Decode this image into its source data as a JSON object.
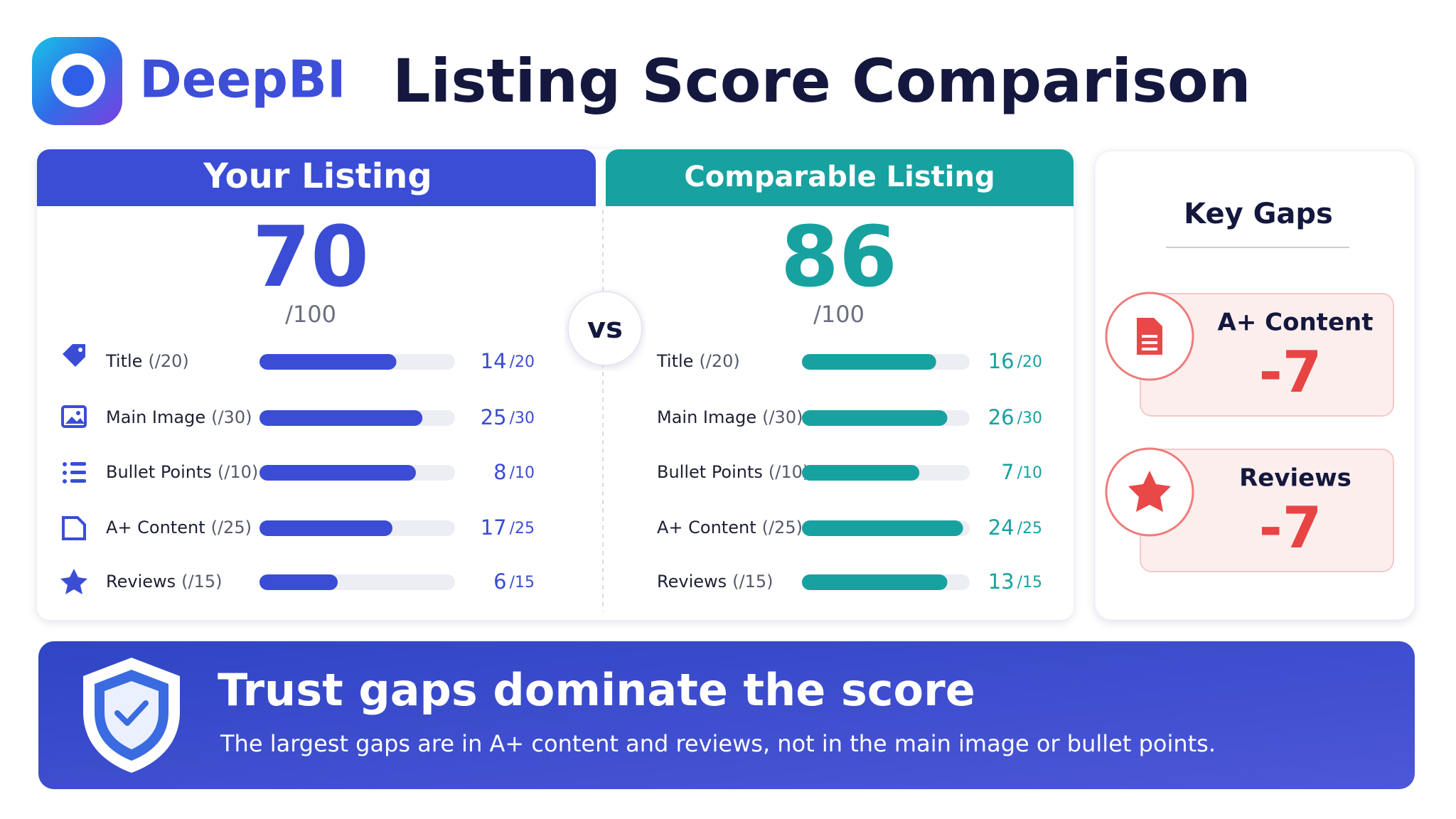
{
  "brand": "DeepBI",
  "title": "Listing Score Comparison",
  "vs": "vs",
  "panels": [
    {
      "heading": "Your Listing",
      "score": 70,
      "score_max": "/100",
      "color": "#3a4dd4",
      "rows": [
        {
          "label": "Title",
          "suffix": "(/20)",
          "value": 14,
          "max": 20,
          "max_label": "/20"
        },
        {
          "label": "Main Image",
          "suffix": "(/30)",
          "value": 25,
          "max": 30,
          "max_label": "/30"
        },
        {
          "label": "Bullet Points",
          "suffix": "(/10)",
          "value": 8,
          "max": 10,
          "max_label": "/10"
        },
        {
          "label": "A+ Content",
          "suffix": "(/25)",
          "value": 17,
          "max": 25,
          "max_label": "/25"
        },
        {
          "label": "Reviews",
          "suffix": "(/15)",
          "value": 6,
          "max": 15,
          "max_label": "/15"
        }
      ]
    },
    {
      "heading": "Comparable Listing",
      "score": 86,
      "score_max": "/100",
      "color": "#17a2a0",
      "rows": [
        {
          "label": "Title",
          "suffix": "(/20)",
          "value": 16,
          "max": 20,
          "max_label": "/20"
        },
        {
          "label": "Main Image",
          "suffix": "(/30)",
          "value": 26,
          "max": 30,
          "max_label": "/30"
        },
        {
          "label": "Bullet Points",
          "suffix": "(/10)",
          "value": 7,
          "max": 10,
          "max_label": "/10"
        },
        {
          "label": "A+ Content",
          "suffix": "(/25)",
          "value": 24,
          "max": 25,
          "max_label": "/25"
        },
        {
          "label": "Reviews",
          "suffix": "(/15)",
          "value": 13,
          "max": 15,
          "max_label": "/15"
        }
      ]
    }
  ],
  "key_gaps": {
    "title": "Key Gaps",
    "items": [
      {
        "label": "A+ Content",
        "value": -7
      },
      {
        "label": "Reviews",
        "value": -7
      }
    ]
  },
  "banner": {
    "title": "Trust gaps dominate the score",
    "text": "The largest gaps are in A+ content and reviews, not in the main image or bullet points."
  }
}
